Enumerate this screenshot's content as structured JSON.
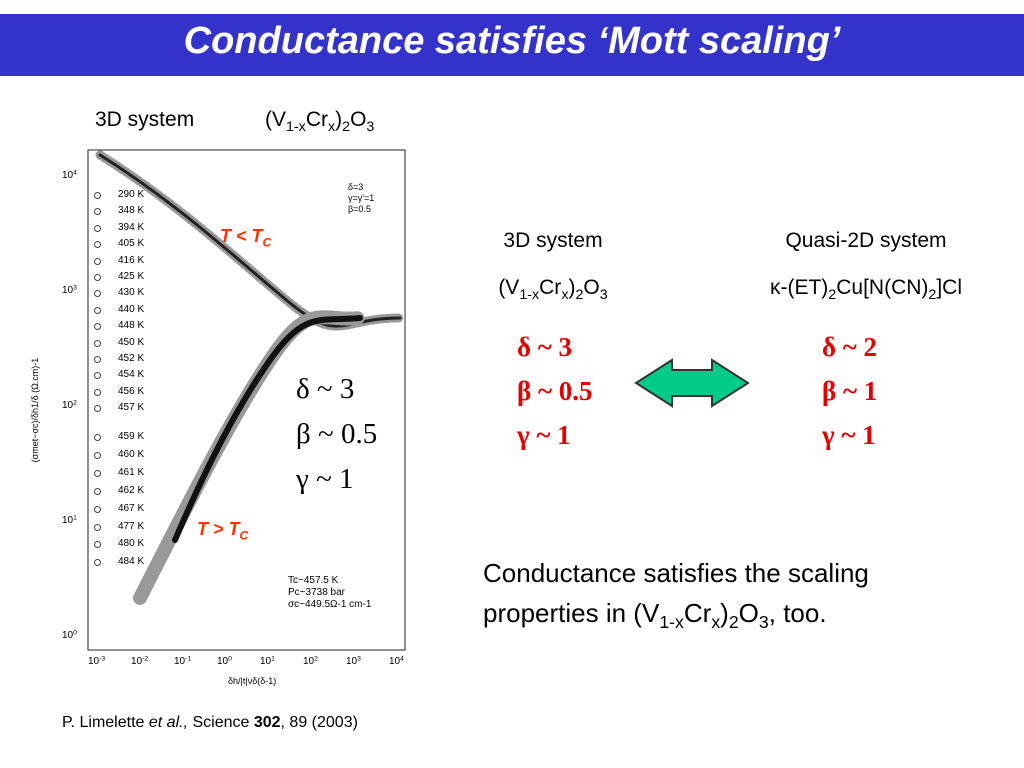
{
  "header": {
    "title": "Conductance satisfies ‘Mott scaling’"
  },
  "left": {
    "label": "3D system",
    "formula": [
      "(V",
      "1-x",
      "Cr",
      "x",
      ")",
      "2",
      "O",
      "3"
    ]
  },
  "figure": {
    "y_axis_label": "(σmet−σc)/δh1/δ (Ω.cm)-1",
    "x_axis_label": "δh/|t|νδ(δ-1)",
    "tick_base": "10",
    "x_tick_exponents": [
      "-3",
      "-2",
      "-1",
      "0",
      "1",
      "2",
      "3",
      "4"
    ],
    "y_tick_exponents": [
      "0",
      "1",
      "2",
      "3",
      "4"
    ],
    "temperatures_low": [
      "290 K",
      "348 K",
      "394 K",
      "405 K",
      "416 K",
      "425 K",
      "430 K",
      "440 K",
      "448 K",
      "450 K",
      "452 K",
      "454 K",
      "456 K",
      "457 K"
    ],
    "temperatures_high": [
      "459 K",
      "460 K",
      "461 K",
      "462 K",
      "467 K",
      "477 K",
      "480 K",
      "484 K"
    ],
    "model_params": [
      "δ=3",
      "γ=γ'=1",
      "β=0.5"
    ],
    "critical_params": [
      "Tc~457.5 K",
      "Pc~3738 bar",
      "σc~449.5Ω-1 cm-1"
    ],
    "annotation_low": [
      "T < T",
      "C"
    ],
    "annotation_high": [
      "T > T",
      "C"
    ],
    "exponents": [
      "δ ~ 3",
      "β ~ 0.5",
      "γ ~ 1"
    ]
  },
  "comparison": {
    "columns": [
      {
        "label": "3D system",
        "formula": [
          "(V",
          "1-x",
          "Cr",
          "x",
          ")",
          "2",
          "O",
          "3"
        ],
        "exponents": [
          "δ ~ 3",
          "β ~ 0.5",
          "γ ~ 1"
        ]
      },
      {
        "label": "Quasi-2D system",
        "formula": [
          "κ-(ET)",
          "2",
          "Cu[N(CN)",
          "2",
          "]Cl"
        ],
        "exponents": [
          "δ ~ 2",
          "β ~ 1",
          "γ ~ 1"
        ]
      }
    ]
  },
  "note": {
    "lines": [
      [
        "Conductance satisfies the scaling"
      ],
      [
        "properties in (V",
        "1-x",
        "Cr",
        "x",
        ")",
        "2",
        "O",
        "3",
        ", too."
      ]
    ]
  },
  "citation": {
    "parts": [
      "P. Limelette ",
      "et al.,",
      " Science ",
      "302",
      ", 89 (2003)"
    ]
  }
}
